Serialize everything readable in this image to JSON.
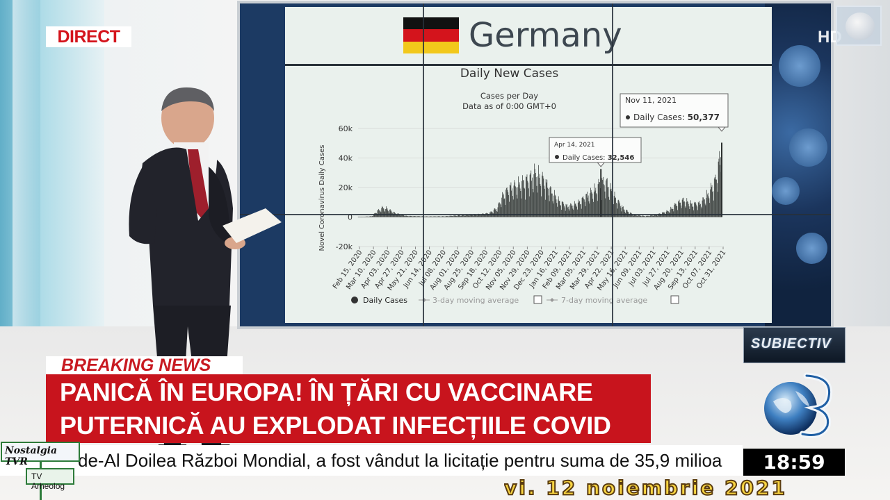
{
  "overlay": {
    "direct_label": "DIRECT",
    "channel_hd": "HD",
    "show_logo": "SUBIECTIV",
    "breaking_label": "BREAKING NEWS",
    "headline_lines": [
      "PANICĂ ÎN EUROPA! ÎN ȚĂRI CU VACCINARE",
      "PUTERNICĂ AU EXPLODAT INFECȚIILE COVID"
    ],
    "ticker_text": "de-Al Doilea Război Mondial, a fost vândut la licitație pentru suma de 35,9 milioa",
    "clock": "18:59",
    "watermark_top": "Nostalgia TVR",
    "watermark_bottom": "TV Arheolog",
    "date_banner": "vi. 12 noiembrie 2021"
  },
  "colors": {
    "direct_red": "#d4141c",
    "headline_red": "#c8141d",
    "flag_black": "#111111",
    "flag_red": "#d4141c",
    "flag_gold": "#f2c81b"
  },
  "chart_data": {
    "type": "bar",
    "country": "Germany",
    "title": "Daily New Cases",
    "subtitle": "Cases per Day",
    "subtitle2": "Data as of 0:00 GMT+0",
    "ylabel": "Novel Coronavirus Daily Cases",
    "ylim": [
      -20000,
      60000
    ],
    "yticks": [
      60000,
      40000,
      20000,
      0,
      -20000
    ],
    "ytick_labels": [
      "60k",
      "40k",
      "20k",
      "0",
      "-20k"
    ],
    "xtick_labels": [
      "Feb 15, 2020",
      "Mar 10, 2020",
      "Apr 03, 2020",
      "Apr 27, 2020",
      "May 21, 2020",
      "Jun 14, 2020",
      "Jul 08, 2020",
      "Aug 01, 2020",
      "Aug 25, 2020",
      "Sep 18, 2020",
      "Oct 12, 2020",
      "Nov 05, 2020",
      "Nov 29, 2020",
      "Dec 23, 2020",
      "Jan 16, 2021",
      "Feb 09, 2021",
      "Mar 05, 2021",
      "Mar 29, 2021",
      "Apr 22, 2021",
      "May 16, 2021",
      "Jun 09, 2021",
      "Jul 03, 2021",
      "Jul 27, 2021",
      "Aug 20, 2021",
      "Sep 13, 2021",
      "Oct 07, 2021",
      "Oct 31, 2021"
    ],
    "x_start": "2020-02-15",
    "x_end": "2021-11-11",
    "profile": [
      [
        "2020-02-15",
        0
      ],
      [
        "2020-03-10",
        500
      ],
      [
        "2020-03-20",
        4000
      ],
      [
        "2020-03-28",
        6000
      ],
      [
        "2020-04-05",
        5500
      ],
      [
        "2020-04-20",
        2500
      ],
      [
        "2020-05-10",
        700
      ],
      [
        "2020-06-15",
        400
      ],
      [
        "2020-07-15",
        500
      ],
      [
        "2020-08-15",
        1200
      ],
      [
        "2020-09-15",
        1800
      ],
      [
        "2020-10-01",
        2500
      ],
      [
        "2020-10-15",
        6000
      ],
      [
        "2020-10-25",
        14000
      ],
      [
        "2020-11-05",
        19000
      ],
      [
        "2020-11-20",
        21000
      ],
      [
        "2020-12-10",
        25000
      ],
      [
        "2020-12-20",
        29000
      ],
      [
        "2021-01-05",
        24000
      ],
      [
        "2021-01-15",
        18000
      ],
      [
        "2021-02-01",
        10000
      ],
      [
        "2021-02-15",
        7000
      ],
      [
        "2021-03-05",
        9000
      ],
      [
        "2021-03-20",
        14000
      ],
      [
        "2021-04-05",
        18000
      ],
      [
        "2021-04-14",
        23000
      ],
      [
        "2021-04-25",
        22000
      ],
      [
        "2021-05-10",
        12000
      ],
      [
        "2021-05-25",
        5000
      ],
      [
        "2021-06-10",
        1500
      ],
      [
        "2021-07-01",
        600
      ],
      [
        "2021-07-20",
        1500
      ],
      [
        "2021-08-10",
        4000
      ],
      [
        "2021-08-25",
        9000
      ],
      [
        "2021-09-05",
        11000
      ],
      [
        "2021-09-20",
        8500
      ],
      [
        "2021-10-05",
        9000
      ],
      [
        "2021-10-20",
        16000
      ],
      [
        "2021-11-01",
        25000
      ],
      [
        "2021-11-11",
        45000
      ]
    ],
    "tooltips": [
      {
        "date": "Apr 14, 2021",
        "label": "Daily Cases",
        "value": "32,546",
        "x": "2021-04-14",
        "y": 32546
      },
      {
        "date": "Nov 11, 2021",
        "label": "Daily Cases",
        "value": "50,377",
        "x": "2021-11-11",
        "y": 50377
      }
    ],
    "legend": {
      "position": "bottom",
      "items": [
        "Daily Cases",
        "3-day moving average",
        "7-day moving average"
      ]
    },
    "grid": true
  }
}
